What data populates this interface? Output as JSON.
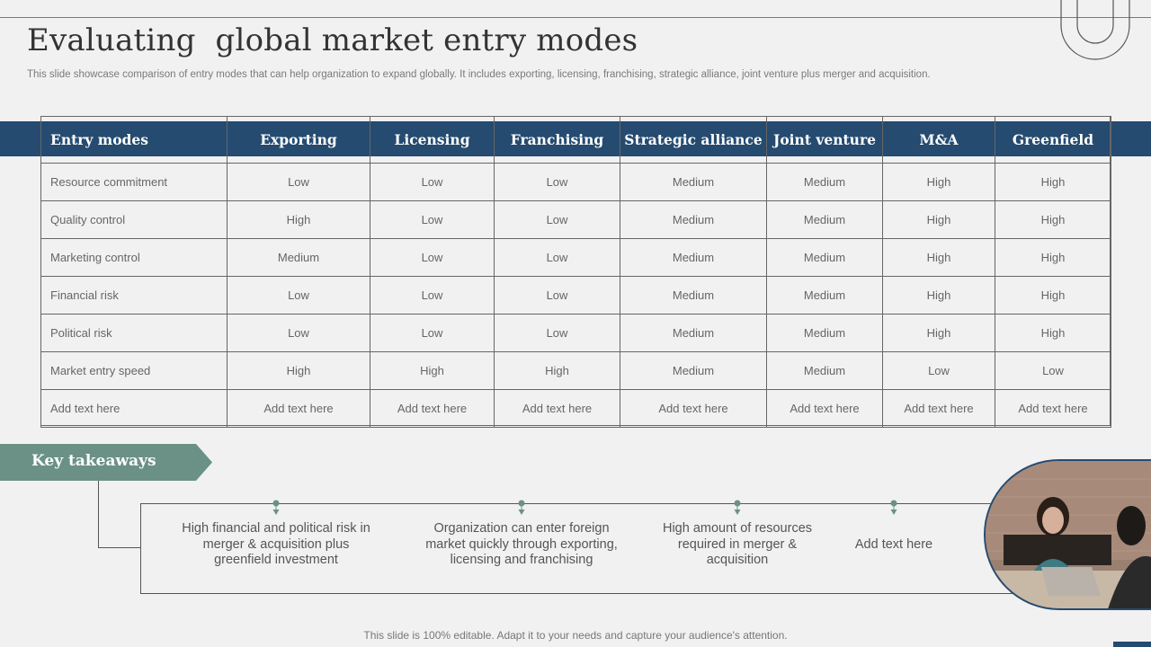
{
  "title": "Evaluating  global market entry modes",
  "subtitle": "This slide showcase comparison of entry modes that can help organization to expand globally. It includes exporting, licensing, franchising, strategic alliance, joint venture plus merger and acquisition.",
  "table": {
    "headers": [
      "Entry modes",
      "Exporting",
      "Licensing",
      "Franchising",
      "Strategic alliance",
      "Joint venture",
      "M&A",
      "Greenfield"
    ],
    "rows": [
      [
        "Resource commitment",
        "Low",
        "Low",
        "Low",
        "Medium",
        "Medium",
        "High",
        "High"
      ],
      [
        "Quality control",
        "High",
        "Low",
        "Low",
        "Medium",
        "Medium",
        "High",
        "High"
      ],
      [
        "Marketing control",
        "Medium",
        "Low",
        "Low",
        "Medium",
        "Medium",
        "High",
        "High"
      ],
      [
        "Financial risk",
        "Low",
        "Low",
        "Low",
        "Medium",
        "Medium",
        "High",
        "High"
      ],
      [
        "Political risk",
        "Low",
        "Low",
        "Low",
        "Medium",
        "Medium",
        "High",
        "High"
      ],
      [
        "Market entry speed",
        "High",
        "High",
        "High",
        "Medium",
        "Medium",
        "Low",
        "Low"
      ],
      [
        "Add text here",
        "Add text here",
        "Add text here",
        "Add text here",
        "Add text here",
        "Add text here",
        "Add text here",
        "Add text here"
      ]
    ]
  },
  "key_takeaways": {
    "label": "Key takeaways",
    "items": [
      "High financial and political risk in merger & acquisition plus greenfield investment",
      "Organization can enter foreign market quickly through exporting, licensing and franchising",
      "High amount of resources required in merger & acquisition",
      "Add text here"
    ]
  },
  "footer": "This slide is 100% editable. Adapt it to your needs and capture your audience's attention.",
  "colors": {
    "header_band": "#254b70",
    "takeaway_band": "#6b9186",
    "background": "#f1f1f1"
  },
  "icons": [
    "rounded-u-decoration",
    "pin-marker-icon",
    "meeting-photo"
  ]
}
